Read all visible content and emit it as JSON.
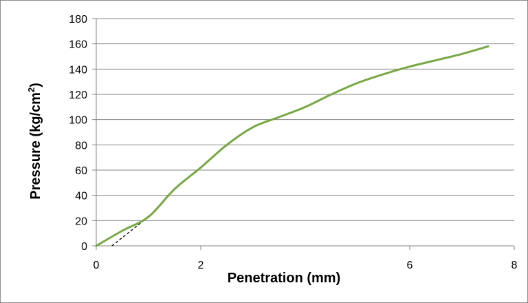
{
  "chart_data": {
    "type": "line",
    "xlabel": "Penetration (mm)",
    "ylabel": {
      "main": "Pressure (kg/cm",
      "sup": "2",
      "close": ")"
    },
    "xlim": [
      0,
      8
    ],
    "ylim": [
      0,
      180
    ],
    "x_ticks": [
      "0",
      "2",
      "6",
      "8"
    ],
    "x_tick_values": [
      0,
      2,
      6,
      8
    ],
    "y_ticks": [
      "0",
      "20",
      "40",
      "60",
      "80",
      "100",
      "120",
      "140",
      "160",
      "180"
    ],
    "y_tick_values": [
      0,
      20,
      40,
      60,
      80,
      100,
      120,
      140,
      160,
      180
    ],
    "grid": "horizontal",
    "legend": "none",
    "series": [
      {
        "color": "#77a844",
        "x": [
          0,
          0.5,
          1.0,
          1.5,
          2.0,
          2.5,
          3.0,
          3.5,
          4.0,
          4.5,
          5.0,
          5.5,
          6.0,
          6.5,
          7.0,
          7.5
        ],
        "y": [
          0,
          12,
          23,
          45,
          62,
          80,
          94,
          102,
          110,
          120,
          129,
          136,
          142,
          147,
          152,
          158
        ]
      }
    ],
    "tangent_line": {
      "color": "#000000",
      "style": "dashed",
      "x": [
        0.3,
        1.0
      ],
      "y": [
        0,
        23
      ]
    }
  }
}
